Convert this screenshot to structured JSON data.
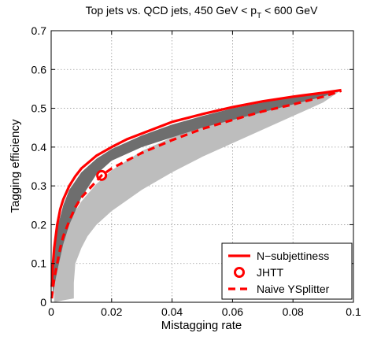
{
  "chart_data": {
    "type": "line",
    "title": "Top jets vs. QCD jets, 450 GeV < p",
    "title_subscript": "T",
    "title_suffix": " < 600 GeV",
    "xlabel": "Mistagging rate",
    "ylabel": "Tagging efficiency",
    "xlim": [
      0,
      0.1
    ],
    "ylim": [
      0,
      0.7
    ],
    "xticks": [
      0,
      0.02,
      0.04,
      0.06,
      0.08,
      0.1
    ],
    "xtick_labels": [
      "0",
      "0.02",
      "0.04",
      "0.06",
      "0.08",
      "0.1"
    ],
    "yticks": [
      0,
      0.1,
      0.2,
      0.3,
      0.4,
      0.5,
      0.6,
      0.7
    ],
    "ytick_labels": [
      "0",
      "0.1",
      "0.2",
      "0.3",
      "0.4",
      "0.5",
      "0.6",
      "0.7"
    ],
    "grid": true,
    "legend_position": "bottom-right",
    "bands": [
      {
        "color": "#6e6e6e",
        "upper": [
          [
            0.0005,
            0.04
          ],
          [
            0.001,
            0.13
          ],
          [
            0.002,
            0.19
          ],
          [
            0.004,
            0.25
          ],
          [
            0.006,
            0.29
          ],
          [
            0.01,
            0.335
          ],
          [
            0.015,
            0.37
          ],
          [
            0.02,
            0.395
          ],
          [
            0.03,
            0.43
          ],
          [
            0.04,
            0.458
          ],
          [
            0.05,
            0.48
          ],
          [
            0.06,
            0.5
          ],
          [
            0.07,
            0.515
          ],
          [
            0.08,
            0.53
          ],
          [
            0.09,
            0.54
          ],
          [
            0.096,
            0.547
          ]
        ],
        "lower": [
          [
            0.096,
            0.547
          ],
          [
            0.09,
            0.53
          ],
          [
            0.08,
            0.51
          ],
          [
            0.07,
            0.49
          ],
          [
            0.06,
            0.47
          ],
          [
            0.05,
            0.45
          ],
          [
            0.04,
            0.425
          ],
          [
            0.03,
            0.4
          ],
          [
            0.02,
            0.365
          ],
          [
            0.015,
            0.33
          ],
          [
            0.01,
            0.27
          ],
          [
            0.006,
            0.2
          ],
          [
            0.004,
            0.15
          ],
          [
            0.002,
            0.08
          ],
          [
            0.001,
            0.04
          ],
          [
            0.0005,
            0.01
          ]
        ]
      },
      {
        "color": "#bdbdbd",
        "upper": [
          [
            0.001,
            0.04
          ],
          [
            0.002,
            0.09
          ],
          [
            0.004,
            0.16
          ],
          [
            0.006,
            0.21
          ],
          [
            0.01,
            0.26
          ],
          [
            0.015,
            0.305
          ],
          [
            0.02,
            0.34
          ],
          [
            0.03,
            0.39
          ],
          [
            0.04,
            0.425
          ],
          [
            0.05,
            0.455
          ],
          [
            0.06,
            0.475
          ],
          [
            0.07,
            0.495
          ],
          [
            0.08,
            0.515
          ],
          [
            0.09,
            0.535
          ],
          [
            0.096,
            0.547
          ]
        ],
        "lower": [
          [
            0.096,
            0.547
          ],
          [
            0.09,
            0.515
          ],
          [
            0.08,
            0.48
          ],
          [
            0.07,
            0.445
          ],
          [
            0.06,
            0.41
          ],
          [
            0.05,
            0.375
          ],
          [
            0.04,
            0.335
          ],
          [
            0.03,
            0.29
          ],
          [
            0.02,
            0.235
          ],
          [
            0.015,
            0.2
          ],
          [
            0.012,
            0.17
          ],
          [
            0.01,
            0.14
          ],
          [
            0.008,
            0.1
          ],
          [
            0.0075,
            0.05
          ],
          [
            0.0075,
            0.01
          ],
          [
            0.004,
            0.005
          ],
          [
            0.001,
            0.0
          ]
        ]
      }
    ],
    "series": [
      {
        "name": "N−subjettiness",
        "style": "solid",
        "color": "#ff0000",
        "points": [
          [
            0.0002,
            0.04
          ],
          [
            0.0005,
            0.09
          ],
          [
            0.001,
            0.14
          ],
          [
            0.002,
            0.2
          ],
          [
            0.003,
            0.24
          ],
          [
            0.004,
            0.265
          ],
          [
            0.006,
            0.3
          ],
          [
            0.008,
            0.325
          ],
          [
            0.01,
            0.345
          ],
          [
            0.015,
            0.378
          ],
          [
            0.02,
            0.4
          ],
          [
            0.025,
            0.42
          ],
          [
            0.03,
            0.435
          ],
          [
            0.04,
            0.465
          ],
          [
            0.05,
            0.485
          ],
          [
            0.06,
            0.503
          ],
          [
            0.07,
            0.518
          ],
          [
            0.08,
            0.53
          ],
          [
            0.09,
            0.54
          ],
          [
            0.096,
            0.547
          ]
        ]
      },
      {
        "name": "JHTT",
        "style": "marker",
        "color": "#ff0000",
        "points": [
          [
            0.0167,
            0.327
          ]
        ]
      },
      {
        "name": "Naive YSplitter",
        "style": "dashed",
        "color": "#ff0000",
        "points": [
          [
            0.0002,
            0.01
          ],
          [
            0.0005,
            0.03
          ],
          [
            0.001,
            0.06
          ],
          [
            0.002,
            0.1
          ],
          [
            0.003,
            0.14
          ],
          [
            0.004,
            0.17
          ],
          [
            0.006,
            0.21
          ],
          [
            0.008,
            0.245
          ],
          [
            0.01,
            0.27
          ],
          [
            0.0167,
            0.327
          ],
          [
            0.02,
            0.345
          ],
          [
            0.03,
            0.385
          ],
          [
            0.04,
            0.418
          ],
          [
            0.05,
            0.447
          ],
          [
            0.06,
            0.47
          ],
          [
            0.07,
            0.492
          ],
          [
            0.08,
            0.51
          ],
          [
            0.09,
            0.53
          ],
          [
            0.096,
            0.545
          ]
        ]
      }
    ]
  }
}
